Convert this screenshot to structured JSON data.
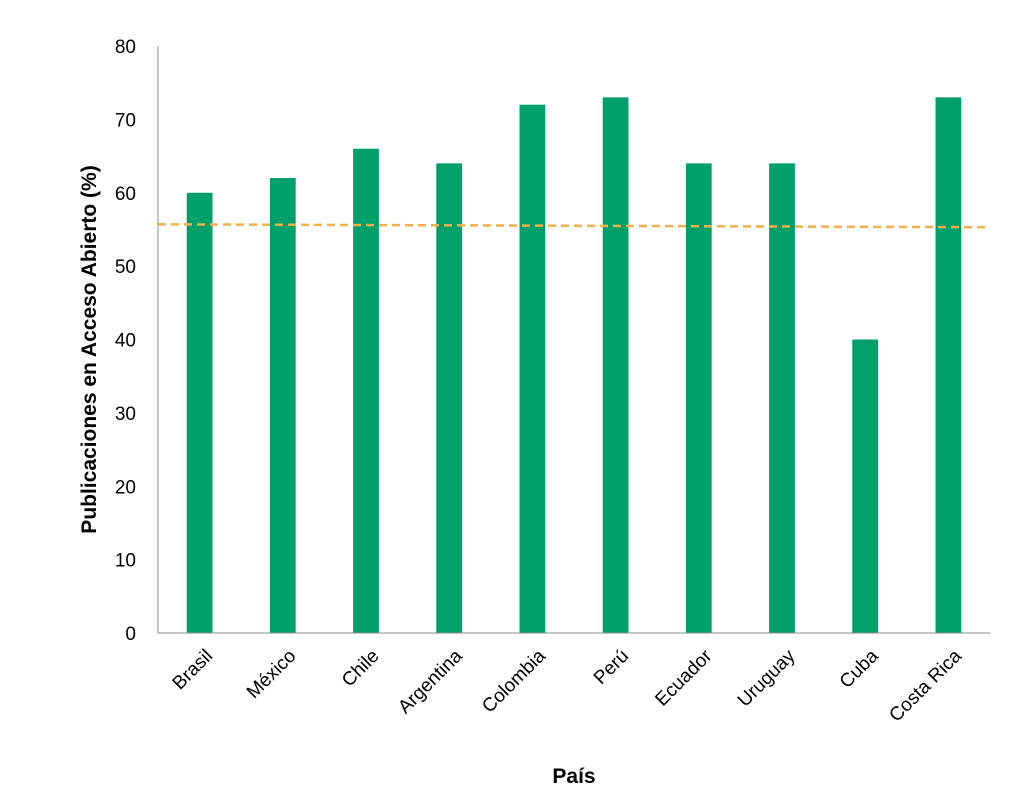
{
  "chart_data": {
    "type": "bar",
    "categories": [
      "Brasil",
      "México",
      "Chile",
      "Argentina",
      "Colombia",
      "Perú",
      "Ecuador",
      "Uruguay",
      "Cuba",
      "Costa Rica"
    ],
    "series": [
      {
        "values": [
          60,
          62,
          66,
          64,
          72,
          73,
          64,
          64,
          40,
          73
        ]
      }
    ],
    "reference_line": {
      "style": "dashed",
      "start": 55.7,
      "end": 55.3
    },
    "xlabel": "País",
    "ylabel": "Publicaciones en Acceso Abierto (%)",
    "ylim": [
      0,
      80
    ],
    "yticks": [
      0,
      10,
      20,
      30,
      40,
      50,
      60,
      70,
      80
    ],
    "grid": false,
    "legend": "none",
    "colors": {
      "bar": "#00a06b",
      "reference_line": "#f2b04a",
      "axis": "#8c8c8c"
    }
  }
}
